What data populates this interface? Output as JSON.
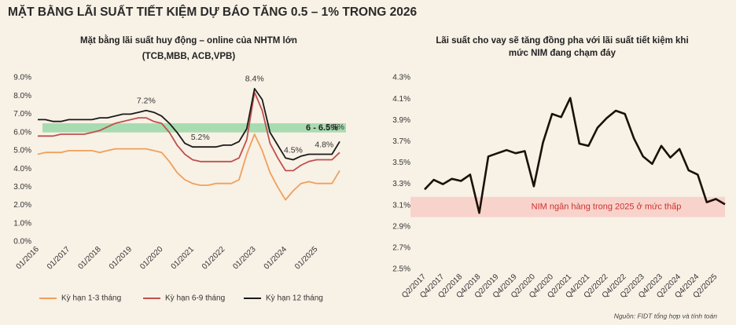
{
  "title": "MẶT BẰNG LÃI SUẤT TIẾT KIỆM DỰ BÁO TĂNG 0.5 – 1% TRONG 2026",
  "source": "Nguồn: FIDT tổng hợp và tính toán",
  "chart_data": [
    {
      "type": "line",
      "title": "Mặt bằng lãi suất huy động – online của NHTM lớn",
      "subtitle": "(TCB,MBB, ACB,VPB)",
      "categories": [
        "01/2016",
        null,
        null,
        null,
        "01/2017",
        null,
        null,
        null,
        "01/2018",
        null,
        null,
        null,
        "01/2019",
        null,
        null,
        null,
        "01/2020",
        null,
        null,
        null,
        "01/2021",
        null,
        null,
        null,
        "01/2022",
        null,
        null,
        null,
        "01/2023",
        null,
        null,
        null,
        "01/2024",
        null,
        null,
        null,
        "01/2025",
        null,
        null,
        null
      ],
      "series": [
        {
          "name": "Kỳ hạn 1-3 tháng",
          "color": "#f0a05a",
          "values": [
            4.8,
            4.9,
            4.9,
            4.9,
            5.0,
            5.0,
            5.0,
            5.0,
            4.9,
            5.0,
            5.1,
            5.1,
            5.1,
            5.1,
            5.1,
            5.0,
            4.9,
            4.4,
            3.8,
            3.4,
            3.2,
            3.1,
            3.1,
            3.2,
            3.2,
            3.2,
            3.4,
            4.8,
            5.9,
            5.0,
            3.8,
            3.0,
            2.3,
            2.8,
            3.2,
            3.3,
            3.2,
            3.2,
            3.2,
            3.9
          ]
        },
        {
          "name": "Kỳ hạn 6-9 tháng",
          "color": "#c0504d",
          "values": [
            5.8,
            5.8,
            5.8,
            5.9,
            5.9,
            5.9,
            5.9,
            6.0,
            6.1,
            6.3,
            6.5,
            6.6,
            6.7,
            6.8,
            6.8,
            6.6,
            6.5,
            6.0,
            5.3,
            4.8,
            4.5,
            4.4,
            4.4,
            4.4,
            4.4,
            4.4,
            4.6,
            5.6,
            8.2,
            7.2,
            5.4,
            4.6,
            3.9,
            3.9,
            4.2,
            4.4,
            4.5,
            4.5,
            4.5,
            4.9
          ]
        },
        {
          "name": "Kỳ hạn 12 tháng",
          "color": "#1a1a1a",
          "values": [
            6.7,
            6.7,
            6.6,
            6.6,
            6.7,
            6.7,
            6.7,
            6.7,
            6.8,
            6.8,
            6.9,
            7.0,
            7.0,
            7.1,
            7.2,
            7.1,
            6.9,
            6.5,
            6.0,
            5.4,
            5.2,
            5.2,
            5.2,
            5.2,
            5.3,
            5.3,
            5.5,
            6.2,
            8.4,
            7.8,
            6.0,
            5.3,
            4.6,
            4.5,
            4.7,
            4.8,
            4.8,
            4.8,
            4.8,
            5.5
          ]
        }
      ],
      "annotations": [
        "7.2%",
        "5.2%",
        "8.4%",
        "4.5%",
        "4.8%",
        "5.5%"
      ],
      "band": {
        "from": 6,
        "to": 6.5,
        "label": "6 - 6.5%",
        "color": "#a8dcb0"
      },
      "ylim": [
        0,
        9
      ],
      "yticks": [
        {
          "value": 0,
          "label": "0.0%"
        },
        {
          "value": 1,
          "label": "1.0%"
        },
        {
          "value": 2,
          "label": "2.0%"
        },
        {
          "value": 3,
          "label": "3.0%"
        },
        {
          "value": 4,
          "label": "4.0%"
        },
        {
          "value": 5,
          "label": "5.0%"
        },
        {
          "value": 6,
          "label": "6.0%"
        },
        {
          "value": 7,
          "label": "7.0%"
        },
        {
          "value": 8,
          "label": "8.0%"
        },
        {
          "value": 9,
          "label": "9.0%"
        }
      ]
    },
    {
      "type": "line",
      "title": [
        "Lãi suất cho vay sẽ tăng đồng pha với lãi suất tiết kiệm khi",
        "mức NIM đang chạm đáy"
      ],
      "categories": [
        "Q2/2017",
        null,
        "Q4/2017",
        null,
        "Q2/2018",
        null,
        "Q4/2018",
        null,
        "Q2/2019",
        null,
        "Q4/2019",
        null,
        "Q2/2020",
        null,
        "Q4/2020",
        null,
        "Q2/2021",
        null,
        "Q4/2021",
        null,
        "Q2/2022",
        null,
        "Q4/2022",
        null,
        "Q2/2023",
        null,
        "Q4/2023",
        null,
        "Q2/2024",
        null,
        "Q4/2024",
        null,
        "Q2/2025",
        null
      ],
      "series": [
        {
          "color": "#1a1108",
          "values": [
            3.25,
            3.34,
            3.3,
            3.35,
            3.33,
            3.39,
            3.03,
            3.56,
            3.59,
            3.62,
            3.59,
            3.61,
            3.28,
            3.69,
            3.96,
            3.93,
            4.11,
            3.68,
            3.66,
            3.83,
            3.92,
            3.99,
            3.96,
            3.73,
            3.56,
            3.49,
            3.66,
            3.55,
            3.63,
            3.43,
            3.39,
            3.13,
            3.16,
            3.11
          ]
        }
      ],
      "band": {
        "from": 2.99,
        "to": 3.18,
        "label": "NIM ngân hàng trong 2025 ở mức thấp",
        "color": "#f8d3cc"
      },
      "ylim": [
        2.5,
        4.3
      ],
      "yticks": [
        {
          "value": 2.5,
          "label": "2.5%"
        },
        {
          "value": 2.7,
          "label": "2.7%"
        },
        {
          "value": 2.9,
          "label": "2.9%"
        },
        {
          "value": 3.1,
          "label": "3.1%"
        },
        {
          "value": 3.3,
          "label": "3.3%"
        },
        {
          "value": 3.5,
          "label": "3.5%"
        },
        {
          "value": 3.7,
          "label": "3.7%"
        },
        {
          "value": 3.9,
          "label": "3.9%"
        },
        {
          "value": 4.1,
          "label": "4.1%"
        },
        {
          "value": 4.3,
          "label": "4.3%"
        }
      ]
    }
  ]
}
